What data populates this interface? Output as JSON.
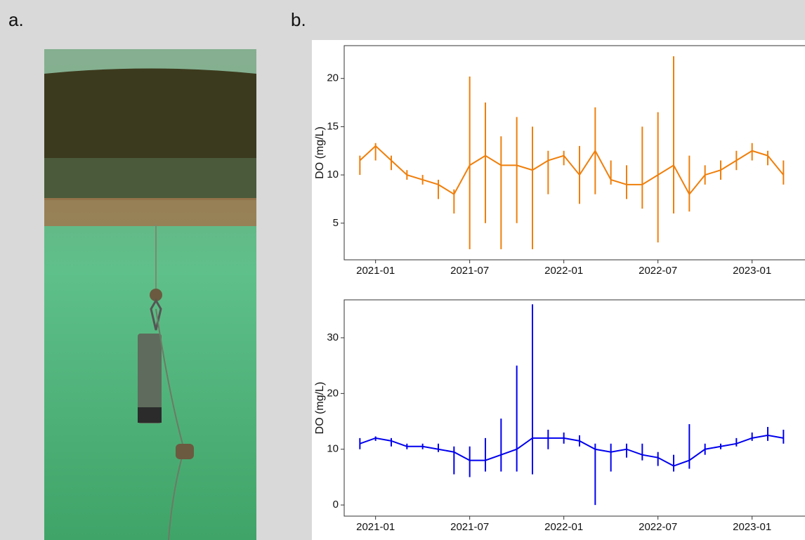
{
  "panel_labels": [
    "a.",
    "b."
  ],
  "chart_data": [
    {
      "type": "line",
      "ylabel": "DO (mg/L)",
      "color": "#ef7f0b",
      "x": [
        "2020-12",
        "2021-01",
        "2021-02",
        "2021-03",
        "2021-04",
        "2021-05",
        "2021-06",
        "2021-07",
        "2021-08",
        "2021-09",
        "2021-10",
        "2021-11",
        "2021-12",
        "2022-01",
        "2022-02",
        "2022-03",
        "2022-04",
        "2022-05",
        "2022-06",
        "2022-07",
        "2022-08",
        "2022-09",
        "2022-10",
        "2022-11",
        "2022-12",
        "2023-01",
        "2023-02",
        "2023-03"
      ],
      "values": [
        11.5,
        13,
        11.5,
        10,
        9.5,
        9,
        8,
        11,
        12,
        11,
        11,
        10.5,
        11.5,
        12,
        10,
        12.5,
        9.5,
        9,
        9,
        10,
        11,
        8,
        10,
        10.5,
        11.5,
        12.5,
        12,
        10
      ],
      "low": [
        10,
        11.5,
        10.5,
        9.5,
        9,
        7.5,
        6,
        2.3,
        5,
        2.3,
        5,
        2.3,
        8,
        11,
        7,
        8,
        9,
        7.5,
        6.5,
        3,
        6,
        6.2,
        9,
        9.5,
        10.5,
        11.5,
        11,
        9
      ],
      "high": [
        12,
        13.3,
        12,
        10.5,
        10,
        9.5,
        8.5,
        20.2,
        17.5,
        14,
        16,
        15,
        12.5,
        12.5,
        13,
        17,
        11.5,
        11,
        15,
        16.5,
        22.3,
        12,
        11,
        11.5,
        12.5,
        13.3,
        12.5,
        11.5
      ],
      "xlim": [
        "2020-11",
        "2023-05"
      ],
      "xticks": [
        "2021-01",
        "2021-07",
        "2022-01",
        "2022-07",
        "2023-01"
      ],
      "ylim": [
        1.2,
        23.4
      ],
      "yticks": [
        5,
        10,
        15,
        20
      ]
    },
    {
      "type": "line",
      "ylabel": "DO (mg/L)",
      "color": "#0000ee",
      "x": [
        "2020-12",
        "2021-01",
        "2021-02",
        "2021-03",
        "2021-04",
        "2021-05",
        "2021-06",
        "2021-07",
        "2021-08",
        "2021-09",
        "2021-10",
        "2021-11",
        "2021-12",
        "2022-01",
        "2022-02",
        "2022-03",
        "2022-04",
        "2022-05",
        "2022-06",
        "2022-07",
        "2022-08",
        "2022-09",
        "2022-10",
        "2022-11",
        "2022-12",
        "2023-01",
        "2023-02",
        "2023-03"
      ],
      "values": [
        11,
        12,
        11.5,
        10.5,
        10.5,
        10,
        9.5,
        8,
        8,
        9,
        10,
        12,
        12,
        12,
        11.5,
        10,
        9.5,
        10,
        9,
        8.5,
        7,
        8,
        10,
        10.5,
        11,
        12,
        12.5,
        12
      ],
      "low": [
        10,
        11.5,
        10.5,
        10,
        10,
        9.5,
        5.5,
        5,
        6,
        6,
        6,
        5.5,
        10,
        11,
        10.5,
        0,
        6,
        8.5,
        8,
        7,
        6,
        6.5,
        9,
        10,
        10.5,
        11.5,
        11.5,
        11
      ],
      "high": [
        12,
        12.3,
        12,
        11,
        11,
        11,
        10.5,
        10.5,
        12,
        15.5,
        25,
        36,
        13.5,
        13,
        12.5,
        11,
        11,
        11,
        11,
        9.5,
        9,
        14.5,
        11,
        11,
        12,
        13,
        14,
        13.5
      ],
      "xlim": [
        "2020-11",
        "2023-05"
      ],
      "xticks": [
        "2021-01",
        "2021-07",
        "2022-01",
        "2022-07",
        "2023-01"
      ],
      "ylim": [
        -2,
        36.8
      ],
      "yticks": [
        0,
        10,
        20,
        30
      ]
    }
  ]
}
